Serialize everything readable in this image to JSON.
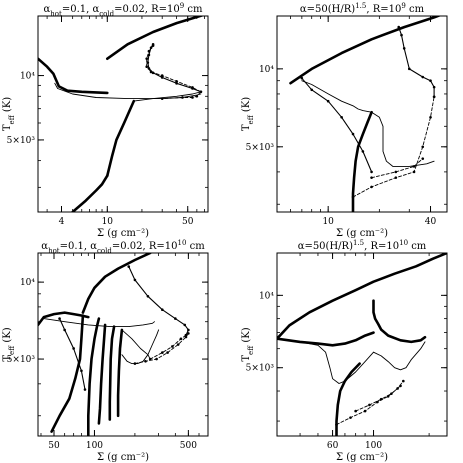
{
  "colors": {
    "ink": "#000000",
    "background": "#ffffff"
  },
  "chart_data": [
    {
      "type": "line",
      "title": "α_hot=0.1, α_cold=0.02, R=10^9 cm",
      "title_parts": {
        "a1": "α",
        "s1": "hot",
        "mid": "=0.1, α",
        "s2": "cold",
        "after": "=0.02, R=10",
        "sup": "9",
        "tail": " cm"
      },
      "xlabel": "Σ (g cm⁻²)",
      "ylabel": "T_eff (K)",
      "ylabel_parts": {
        "main": "T",
        "sub": "eff",
        "unit": " (K)"
      },
      "x_scale": "log",
      "y_scale": "log",
      "xlim": [
        2.5,
        75
      ],
      "ylim": [
        2300,
        19000
      ],
      "x_ticks": [
        4,
        10,
        50
      ],
      "x_tick_labels": [
        "4",
        "10",
        "50"
      ],
      "y_ticks": [
        5000,
        10000
      ],
      "y_tick_labels": [
        "5×10³",
        "10⁴"
      ],
      "series": [
        {
          "style": "thick",
          "x": [
            10,
            15,
            25,
            40,
            75
          ],
          "y": [
            12000,
            14000,
            16000,
            17600,
            19500
          ]
        },
        {
          "style": "thick",
          "x": [
            2.5,
            3.0,
            3.4,
            3.6,
            3.8,
            4.5,
            6,
            10
          ],
          "y": [
            12000,
            11000,
            10200,
            9500,
            8900,
            8500,
            8400,
            8300
          ]
        },
        {
          "style": "thick",
          "x": [
            10,
            11,
            12,
            14,
            17
          ],
          "y": [
            3400,
            4200,
            5000,
            6000,
            7600
          ]
        },
        {
          "style": "thick",
          "x": [
            10,
            9,
            8,
            6.5,
            5
          ],
          "y": [
            3400,
            3100,
            2900,
            2600,
            2300
          ]
        },
        {
          "style": "thin",
          "x": [
            3.5,
            3.7,
            5,
            8,
            15,
            30,
            45,
            60,
            65
          ],
          "y": [
            9200,
            8700,
            8200,
            7900,
            7800,
            7800,
            7900,
            8100,
            8200
          ]
        },
        {
          "style": "thin",
          "x": [
            17,
            25,
            40,
            55,
            65
          ],
          "y": [
            7600,
            7800,
            8000,
            8200,
            8400
          ]
        },
        {
          "style": "marked",
          "x": [
            25,
            24,
            23,
            22.5,
            23,
            25,
            30,
            40,
            55,
            65
          ],
          "y": [
            14000,
            13500,
            12500,
            11500,
            10800,
            10300,
            9800,
            9200,
            8700,
            8400
          ]
        },
        {
          "style": "dashed",
          "x": [
            25,
            23,
            22,
            22,
            24,
            30,
            40,
            55,
            65
          ],
          "y": [
            13800,
            13000,
            12000,
            11000,
            10400,
            10000,
            9400,
            8800,
            8400
          ]
        },
        {
          "style": "dashed",
          "x": [
            65,
            60,
            55,
            45,
            30
          ],
          "y": [
            8400,
            8000,
            7900,
            7900,
            7800
          ]
        }
      ]
    },
    {
      "type": "line",
      "title": "α=50(H/R)^1.5, R=10^9 cm",
      "title_parts": {
        "a1": "α=50(H/R)",
        "sup1": "1.5",
        "mid": ", R=10",
        "sup2": "9",
        "tail": " cm"
      },
      "xlabel": "Σ (g cm⁻²)",
      "ylabel": "T_eff (K)",
      "ylabel_parts": {
        "main": "T",
        "sub": "eff",
        "unit": " (K)"
      },
      "x_scale": "log",
      "y_scale": "log",
      "xlim": [
        5,
        50
      ],
      "ylim": [
        2800,
        16000
      ],
      "x_ticks": [
        10,
        40
      ],
      "x_tick_labels": [
        "10",
        "40"
      ],
      "y_ticks": [
        5000,
        10000
      ],
      "y_tick_labels": [
        "5×10³",
        "10⁴"
      ],
      "series": [
        {
          "style": "thick",
          "x": [
            6,
            8,
            12,
            18,
            28,
            42,
            50
          ],
          "y": [
            8800,
            10000,
            11500,
            13000,
            14500,
            15800,
            16500
          ]
        },
        {
          "style": "thick",
          "x": [
            14,
            14,
            14.2,
            14.5,
            15,
            16,
            17,
            18
          ],
          "y": [
            2800,
            3300,
            3800,
            4400,
            5000,
            5600,
            6200,
            6800
          ]
        },
        {
          "style": "thin",
          "x": [
            7,
            8,
            10,
            12,
            14,
            15,
            16,
            17,
            18
          ],
          "y": [
            9000,
            8700,
            8000,
            7500,
            7200,
            7000,
            6900,
            6850,
            6800
          ]
        },
        {
          "style": "thin",
          "x": [
            18,
            20,
            21,
            21,
            21,
            22,
            24,
            30,
            38,
            42
          ],
          "y": [
            6800,
            6500,
            6000,
            5500,
            4800,
            4400,
            4200,
            4200,
            4300,
            4400
          ]
        },
        {
          "style": "marked",
          "x": [
            26,
            27,
            28,
            30,
            36,
            40,
            42,
            42
          ],
          "y": [
            14500,
            13500,
            12000,
            10000,
            9300,
            9000,
            8500,
            7800
          ]
        },
        {
          "style": "marked",
          "x": [
            7,
            8,
            10,
            12,
            14,
            16,
            18
          ],
          "y": [
            9200,
            8300,
            7500,
            6500,
            5600,
            4800,
            4000
          ]
        },
        {
          "style": "dashed",
          "x": [
            14,
            18,
            25,
            32,
            36,
            40,
            42
          ],
          "y": [
            3200,
            3500,
            3800,
            4000,
            5000,
            6500,
            7800
          ]
        },
        {
          "style": "dashed",
          "x": [
            18,
            25,
            32,
            36
          ],
          "y": [
            3800,
            4000,
            4200,
            4500
          ]
        }
      ]
    },
    {
      "type": "line",
      "title": "α_hot=0.1, α_cold=0.02, R=10^10 cm",
      "title_parts": {
        "a1": "α",
        "s1": "hot",
        "mid": "=0.1, α",
        "s2": "cold",
        "after": "=0.02, R=10",
        "sup": "10",
        "tail": " cm"
      },
      "xlabel": "Σ (g cm⁻²)",
      "ylabel": "T_eff (K)",
      "ylabel_parts": {
        "main": "T",
        "sub": "eff",
        "unit": " (K)"
      },
      "x_scale": "log",
      "y_scale": "log",
      "xlim": [
        38,
        700
      ],
      "ylim": [
        2500,
        13000
      ],
      "x_ticks": [
        50,
        100,
        500
      ],
      "x_tick_labels": [
        "50",
        "100",
        "500"
      ],
      "y_ticks": [
        5000,
        10000
      ],
      "y_tick_labels": [
        "5×10³",
        "10⁴"
      ],
      "series": [
        {
          "style": "thick",
          "x": [
            82,
            90,
            100,
            120,
            150,
            200,
            260
          ],
          "y": [
            7600,
            8600,
            9500,
            10500,
            11300,
            12200,
            13000
          ]
        },
        {
          "style": "thick",
          "x": [
            38,
            42,
            50,
            60,
            70,
            80,
            90
          ],
          "y": [
            6800,
            7300,
            7500,
            7600,
            7500,
            7400,
            7300
          ]
        },
        {
          "style": "thick",
          "x": [
            82,
            80,
            78,
            72,
            65,
            55,
            48
          ],
          "y": [
            7400,
            6000,
            5000,
            4200,
            3500,
            3000,
            2600
          ]
        },
        {
          "style": "thick",
          "x": [
            90,
            90,
            91,
            92,
            95,
            100,
            105,
            108
          ],
          "y": [
            2500,
            3000,
            3500,
            4000,
            5000,
            6000,
            6800,
            7200
          ]
        },
        {
          "style": "thick",
          "x": [
            108,
            110,
            112,
            115,
            118,
            120
          ],
          "y": [
            2800,
            3200,
            4000,
            5000,
            6000,
            6800
          ]
        },
        {
          "style": "thick",
          "x": [
            130,
            130,
            131,
            132,
            135,
            140
          ],
          "y": [
            2900,
            3400,
            4000,
            5000,
            6000,
            6700
          ]
        },
        {
          "style": "thick",
          "x": [
            150,
            150,
            152,
            155,
            160
          ],
          "y": [
            3000,
            3600,
            4500,
            5500,
            6500
          ]
        },
        {
          "style": "thin",
          "x": [
            42,
            60,
            90,
            130,
            180,
            230,
            270,
            280
          ],
          "y": [
            7200,
            7000,
            6800,
            6700,
            6700,
            6800,
            6900,
            7000
          ]
        },
        {
          "style": "thin",
          "x": [
            160,
            190,
            220,
            250,
            260
          ],
          "y": [
            6500,
            6000,
            5500,
            5200,
            5000
          ]
        },
        {
          "style": "thin",
          "x": [
            160,
            175,
            190,
            210,
            230,
            250,
            270,
            290,
            300
          ],
          "y": [
            5200,
            4900,
            4800,
            4800,
            4900,
            5200,
            5700,
            6200,
            6500
          ]
        },
        {
          "style": "marked",
          "x": [
            180,
            200,
            250,
            320,
            400,
            470,
            500,
            480
          ],
          "y": [
            11500,
            10200,
            8800,
            7800,
            7200,
            6800,
            6500,
            6200
          ]
        },
        {
          "style": "marked",
          "x": [
            55,
            60,
            70,
            80,
            85
          ],
          "y": [
            7200,
            6500,
            5500,
            4500,
            3800
          ]
        },
        {
          "style": "dashed",
          "x": [
            200,
            240,
            290,
            350,
            420,
            480,
            500
          ],
          "y": [
            4800,
            4900,
            5000,
            5300,
            5700,
            6100,
            6300
          ]
        },
        {
          "style": "dashed",
          "x": [
            260,
            320,
            380,
            440,
            480
          ],
          "y": [
            5000,
            5300,
            5600,
            6000,
            6200
          ]
        }
      ]
    },
    {
      "type": "line",
      "title": "α=50(H/R)^1.5, R=10^10 cm",
      "title_parts": {
        "a1": "α=50(H/R)",
        "sup1": "1.5",
        "mid": ", R=10",
        "sup2": "10",
        "tail": " cm"
      },
      "xlabel": "Σ (g cm⁻²)",
      "ylabel": "T_eff (K)",
      "ylabel_parts": {
        "main": "T",
        "sub": "eff",
        "unit": " (K)"
      },
      "x_scale": "log",
      "y_scale": "log",
      "xlim": [
        30,
        250
      ],
      "ylim": [
        2600,
        15000
      ],
      "x_ticks": [
        60,
        100
      ],
      "x_tick_labels": [
        "60",
        "100"
      ],
      "y_ticks": [
        5000,
        10000
      ],
      "y_tick_labels": [
        "5×10³",
        "10⁴"
      ],
      "series": [
        {
          "style": "thick",
          "x": [
            30,
            35,
            45,
            60,
            80,
            100,
            130,
            170,
            210,
            250
          ],
          "y": [
            6600,
            7500,
            8500,
            9500,
            10500,
            11400,
            12300,
            13200,
            14200,
            15000
          ]
        },
        {
          "style": "thick",
          "x": [
            30,
            40,
            50,
            60,
            70,
            80,
            90,
            100
          ],
          "y": [
            6600,
            6400,
            6300,
            6200,
            6300,
            6500,
            6800,
            7000
          ]
        },
        {
          "style": "thick",
          "x": [
            100,
            100,
            102,
            106,
            110,
            120,
            140,
            160,
            180,
            190
          ],
          "y": [
            9500,
            8500,
            8000,
            7600,
            7200,
            6800,
            6500,
            6400,
            6500,
            6700
          ]
        },
        {
          "style": "thick",
          "x": [
            63,
            63,
            64,
            66,
            70,
            76,
            84
          ],
          "y": [
            2600,
            3000,
            3500,
            4000,
            4400,
            4800,
            5200
          ]
        },
        {
          "style": "thin",
          "x": [
            40,
            50,
            55,
            58,
            60,
            65,
            70,
            80,
            90,
            100
          ],
          "y": [
            6400,
            6200,
            5800,
            5000,
            4500,
            4300,
            4400,
            4800,
            5300,
            5800
          ]
        },
        {
          "style": "thin",
          "x": [
            100,
            110,
            120,
            130,
            140,
            150,
            160,
            180,
            190
          ],
          "y": [
            5800,
            5600,
            5300,
            5000,
            4900,
            5000,
            5400,
            6000,
            6400
          ]
        },
        {
          "style": "dashed",
          "x": [
            63,
            75,
            90,
            105,
            120,
            135,
            145
          ],
          "y": [
            2900,
            3100,
            3300,
            3600,
            3800,
            4100,
            4400
          ]
        },
        {
          "style": "dashed",
          "x": [
            80,
            95,
            110,
            125,
            140
          ],
          "y": [
            3300,
            3500,
            3700,
            3900,
            4200
          ]
        }
      ]
    }
  ]
}
